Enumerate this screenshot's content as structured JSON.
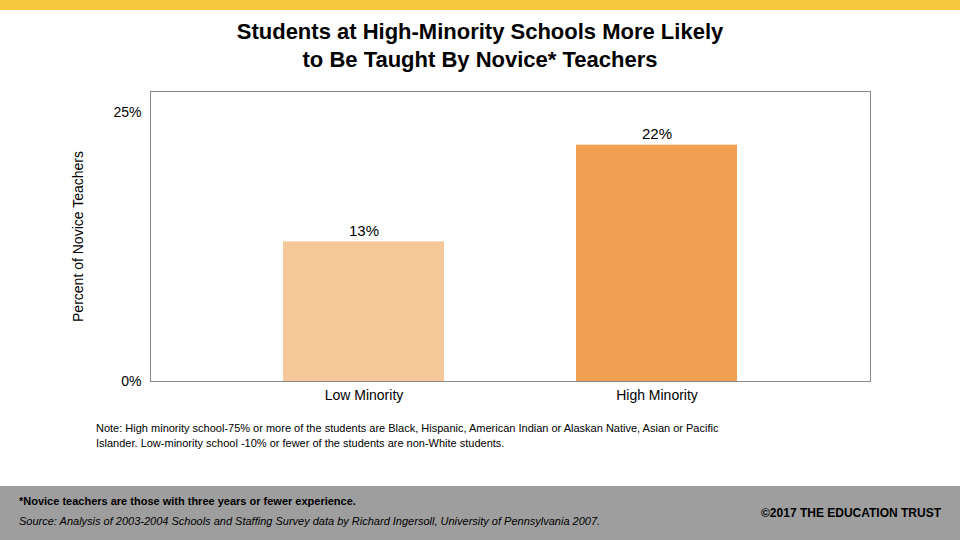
{
  "chart_data": {
    "type": "bar",
    "title": "Students at High-Minority Schools More Likely\nto Be Taught By Novice* Teachers",
    "categories": [
      "Low Minority",
      "High Minority"
    ],
    "values": [
      13,
      22
    ],
    "value_labels": [
      "13%",
      "22%"
    ],
    "data_labels": true,
    "colors": [
      "#F5C89A",
      "#F0A050"
    ],
    "ylabel": "Percent of Novice Teachers",
    "ylim": [
      0,
      27
    ],
    "yticks": [
      {
        "value": 0,
        "label": "0%"
      },
      {
        "value": 25,
        "label": "25%"
      }
    ],
    "grid": false,
    "legend": null,
    "annotations": [
      "Note: High minority school-75% or more of the students are Black, Hispanic, American Indian or Alaskan Native, Asian or Pacific\nIslander.  Low-minority school -10% or fewer of the students are non-White students.",
      "*Novice teachers are those with three years or fewer experience.",
      "Source: Analysis of 2003-2004 Schools and Staffing Survey data by Richard Ingersoll, University of Pennsylvania 2007.",
      "©2017 THE EDUCATION TRUST"
    ]
  }
}
